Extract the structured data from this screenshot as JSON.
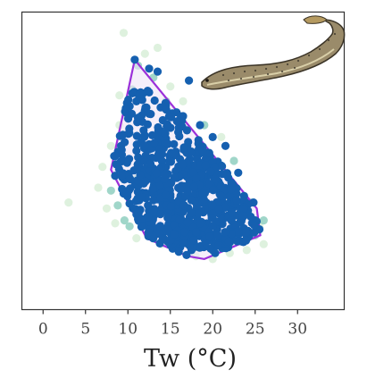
{
  "chart_data": {
    "type": "scatter",
    "title": "",
    "xlabel": "Tw (°C)",
    "ylabel": "",
    "xlim": [
      -2.5,
      35.5
    ],
    "ylim": [
      0,
      1
    ],
    "xticks": [
      0,
      5,
      10,
      15,
      20,
      25,
      30
    ],
    "xtick_labels": [
      "0",
      "5",
      "10",
      "15",
      "20",
      "25",
      "30"
    ],
    "y_axis_labels_shown": false,
    "grid": false,
    "legend": "none",
    "colors": {
      "background_points": "#d8efd8",
      "mid_points": "#8fcfbf",
      "observed_points": "#1560b0",
      "hull": "#9b30d9",
      "hull_fill": "#efe4f6",
      "axis": "#333333"
    },
    "series": [
      {
        "role": "background-density",
        "color": "#d8efd8",
        "points": [
          [
            3,
            0.36
          ],
          [
            9.5,
            0.93
          ],
          [
            12,
            0.86
          ],
          [
            13.5,
            0.88
          ],
          [
            7,
            0.48
          ],
          [
            21,
            0.58
          ],
          [
            25.5,
            0.28
          ],
          [
            26,
            0.22
          ],
          [
            24,
            0.2
          ],
          [
            7.5,
            0.34
          ],
          [
            6.5,
            0.41
          ],
          [
            8,
            0.55
          ],
          [
            9,
            0.62
          ],
          [
            10,
            0.68
          ],
          [
            18,
            0.18
          ],
          [
            16,
            0.2
          ],
          [
            14,
            0.22
          ],
          [
            20,
            0.17
          ],
          [
            22,
            0.19
          ],
          [
            11,
            0.24
          ],
          [
            12.5,
            0.26
          ],
          [
            8.5,
            0.29
          ],
          [
            15,
            0.75
          ],
          [
            16.5,
            0.7
          ],
          [
            9,
            0.72
          ]
        ]
      },
      {
        "role": "intermediate-density",
        "color": "#8fcfbf",
        "points": [
          [
            11.2,
            0.82
          ],
          [
            10.5,
            0.74
          ],
          [
            9.8,
            0.65
          ],
          [
            8.5,
            0.45
          ],
          [
            8,
            0.4
          ],
          [
            8.8,
            0.35
          ],
          [
            9.6,
            0.3
          ],
          [
            12.5,
            0.27
          ],
          [
            15,
            0.23
          ],
          [
            18,
            0.21
          ],
          [
            22,
            0.22
          ],
          [
            25,
            0.25
          ],
          [
            26,
            0.3
          ],
          [
            24.5,
            0.36
          ],
          [
            22.5,
            0.5
          ],
          [
            19,
            0.62
          ],
          [
            14.5,
            0.7
          ],
          [
            13,
            0.78
          ],
          [
            10,
            0.5
          ],
          [
            11,
            0.44
          ],
          [
            10.2,
            0.28
          ],
          [
            23,
            0.27
          ]
        ]
      },
      {
        "role": "observed",
        "color": "#1560b0",
        "points": [
          [
            10.8,
            0.84
          ],
          [
            12.5,
            0.81
          ],
          [
            13.5,
            0.8
          ],
          [
            17.2,
            0.77
          ],
          [
            11.5,
            0.73
          ],
          [
            11,
            0.7
          ],
          [
            12,
            0.67
          ],
          [
            16.5,
            0.65
          ],
          [
            18.5,
            0.62
          ],
          [
            20,
            0.58
          ],
          [
            21.5,
            0.55
          ],
          [
            9.2,
            0.55
          ],
          [
            9.5,
            0.5
          ],
          [
            8.5,
            0.45
          ],
          [
            23,
            0.46
          ],
          [
            24.8,
            0.36
          ],
          [
            25,
            0.3
          ],
          [
            25.5,
            0.27
          ],
          [
            22,
            0.23
          ],
          [
            20,
            0.2
          ],
          [
            17.5,
            0.2
          ],
          [
            16,
            0.22
          ],
          [
            13,
            0.27
          ],
          [
            11,
            0.32
          ],
          [
            14,
            0.5
          ],
          [
            16,
            0.48
          ],
          [
            18,
            0.4
          ],
          [
            19.5,
            0.35
          ],
          [
            21,
            0.32
          ],
          [
            15,
            0.38
          ],
          [
            12.5,
            0.44
          ],
          [
            13.5,
            0.58
          ],
          [
            17,
            0.55
          ],
          [
            19,
            0.45
          ]
        ]
      }
    ],
    "hull_polygon": [
      [
        10.8,
        0.84
      ],
      [
        25.2,
        0.34
      ],
      [
        25.6,
        0.25
      ],
      [
        19,
        0.17
      ],
      [
        17,
        0.18
      ],
      [
        12.2,
        0.24
      ],
      [
        8,
        0.47
      ]
    ],
    "inset_image": "lamprey-fish-illustration"
  }
}
